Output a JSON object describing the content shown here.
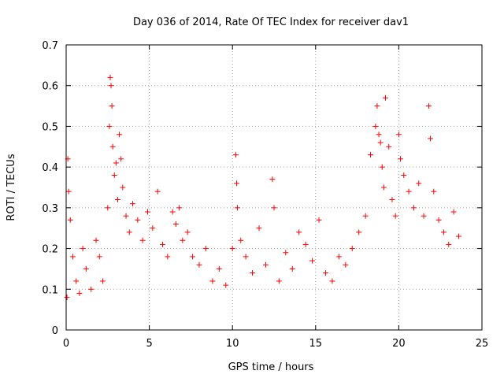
{
  "chart_data": {
    "type": "scatter",
    "title": "Day 036 of 2014, Rate Of TEC Index for receiver dav1",
    "xlabel": "GPS time / hours",
    "ylabel": "ROTI / TECUs",
    "xlim": [
      0,
      25
    ],
    "ylim": [
      0,
      0.7
    ],
    "x_ticks": [
      "0",
      "5",
      "10",
      "15",
      "20",
      "25"
    ],
    "y_ticks": [
      "0",
      "0.1",
      "0.2",
      "0.3",
      "0.4",
      "0.5",
      "0.6",
      "0.7"
    ],
    "grid": true,
    "marker": "+",
    "marker_color": "#ff0000",
    "series": [
      {
        "x": [
          0.05,
          0.1,
          0.15,
          0.25,
          0.4,
          0.6,
          0.8,
          1.0,
          1.2,
          1.5,
          1.8,
          2.0,
          2.2,
          2.5,
          2.6,
          2.65,
          2.7,
          2.75,
          2.8,
          2.9,
          3.0,
          3.1,
          3.2,
          3.3,
          3.4,
          3.6,
          3.8,
          4.0,
          4.3,
          4.6,
          4.9,
          5.2,
          5.5,
          5.8,
          6.1,
          6.4,
          6.6,
          6.8,
          7.0,
          7.3,
          7.6,
          8.0,
          8.4,
          8.8,
          9.2,
          9.6,
          10.0,
          10.2,
          10.25,
          10.3,
          10.5,
          10.8,
          11.2,
          11.6,
          12.0,
          12.4,
          12.5,
          12.8,
          13.2,
          13.6,
          14.0,
          14.4,
          14.8,
          15.2,
          15.6,
          16.0,
          16.4,
          16.8,
          17.2,
          17.6,
          18.0,
          18.3,
          18.6,
          18.7,
          18.8,
          18.9,
          19.0,
          19.1,
          19.2,
          19.4,
          19.6,
          19.8,
          20.0,
          20.1,
          20.3,
          20.6,
          20.9,
          21.2,
          21.5,
          21.8,
          21.9,
          22.1,
          22.4,
          22.7,
          23.0,
          23.3,
          23.6
        ],
        "y": [
          0.08,
          0.42,
          0.34,
          0.27,
          0.18,
          0.12,
          0.09,
          0.2,
          0.15,
          0.1,
          0.22,
          0.18,
          0.12,
          0.3,
          0.5,
          0.62,
          0.6,
          0.55,
          0.45,
          0.38,
          0.41,
          0.32,
          0.48,
          0.42,
          0.35,
          0.28,
          0.24,
          0.31,
          0.27,
          0.22,
          0.29,
          0.25,
          0.34,
          0.21,
          0.18,
          0.29,
          0.26,
          0.3,
          0.22,
          0.24,
          0.18,
          0.16,
          0.2,
          0.12,
          0.15,
          0.11,
          0.2,
          0.43,
          0.36,
          0.3,
          0.22,
          0.18,
          0.14,
          0.25,
          0.16,
          0.37,
          0.3,
          0.12,
          0.19,
          0.15,
          0.24,
          0.21,
          0.17,
          0.27,
          0.14,
          0.12,
          0.18,
          0.16,
          0.2,
          0.24,
          0.28,
          0.43,
          0.5,
          0.55,
          0.48,
          0.46,
          0.4,
          0.35,
          0.57,
          0.45,
          0.32,
          0.28,
          0.48,
          0.42,
          0.38,
          0.34,
          0.3,
          0.36,
          0.28,
          0.55,
          0.47,
          0.34,
          0.27,
          0.24,
          0.21,
          0.29,
          0.23
        ]
      }
    ]
  }
}
